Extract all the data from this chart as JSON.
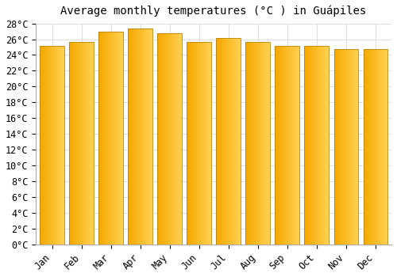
{
  "title": "Average monthly temperatures (°C ) in Guápiles",
  "months": [
    "Jan",
    "Feb",
    "Mar",
    "Apr",
    "May",
    "Jun",
    "Jul",
    "Aug",
    "Sep",
    "Oct",
    "Nov",
    "Dec"
  ],
  "values": [
    25.2,
    25.7,
    27.0,
    27.4,
    26.8,
    25.7,
    26.2,
    25.7,
    25.2,
    25.2,
    24.7,
    24.7
  ],
  "ylim": [
    0,
    28
  ],
  "yticks": [
    0,
    2,
    4,
    6,
    8,
    10,
    12,
    14,
    16,
    18,
    20,
    22,
    24,
    26,
    28
  ],
  "bar_color_left": "#F5A800",
  "bar_color_right": "#FFD050",
  "bar_edge_color": "#B8860B",
  "background_color": "#FFFFFF",
  "grid_color": "#DDDDDD",
  "title_fontsize": 10,
  "tick_fontsize": 8.5
}
